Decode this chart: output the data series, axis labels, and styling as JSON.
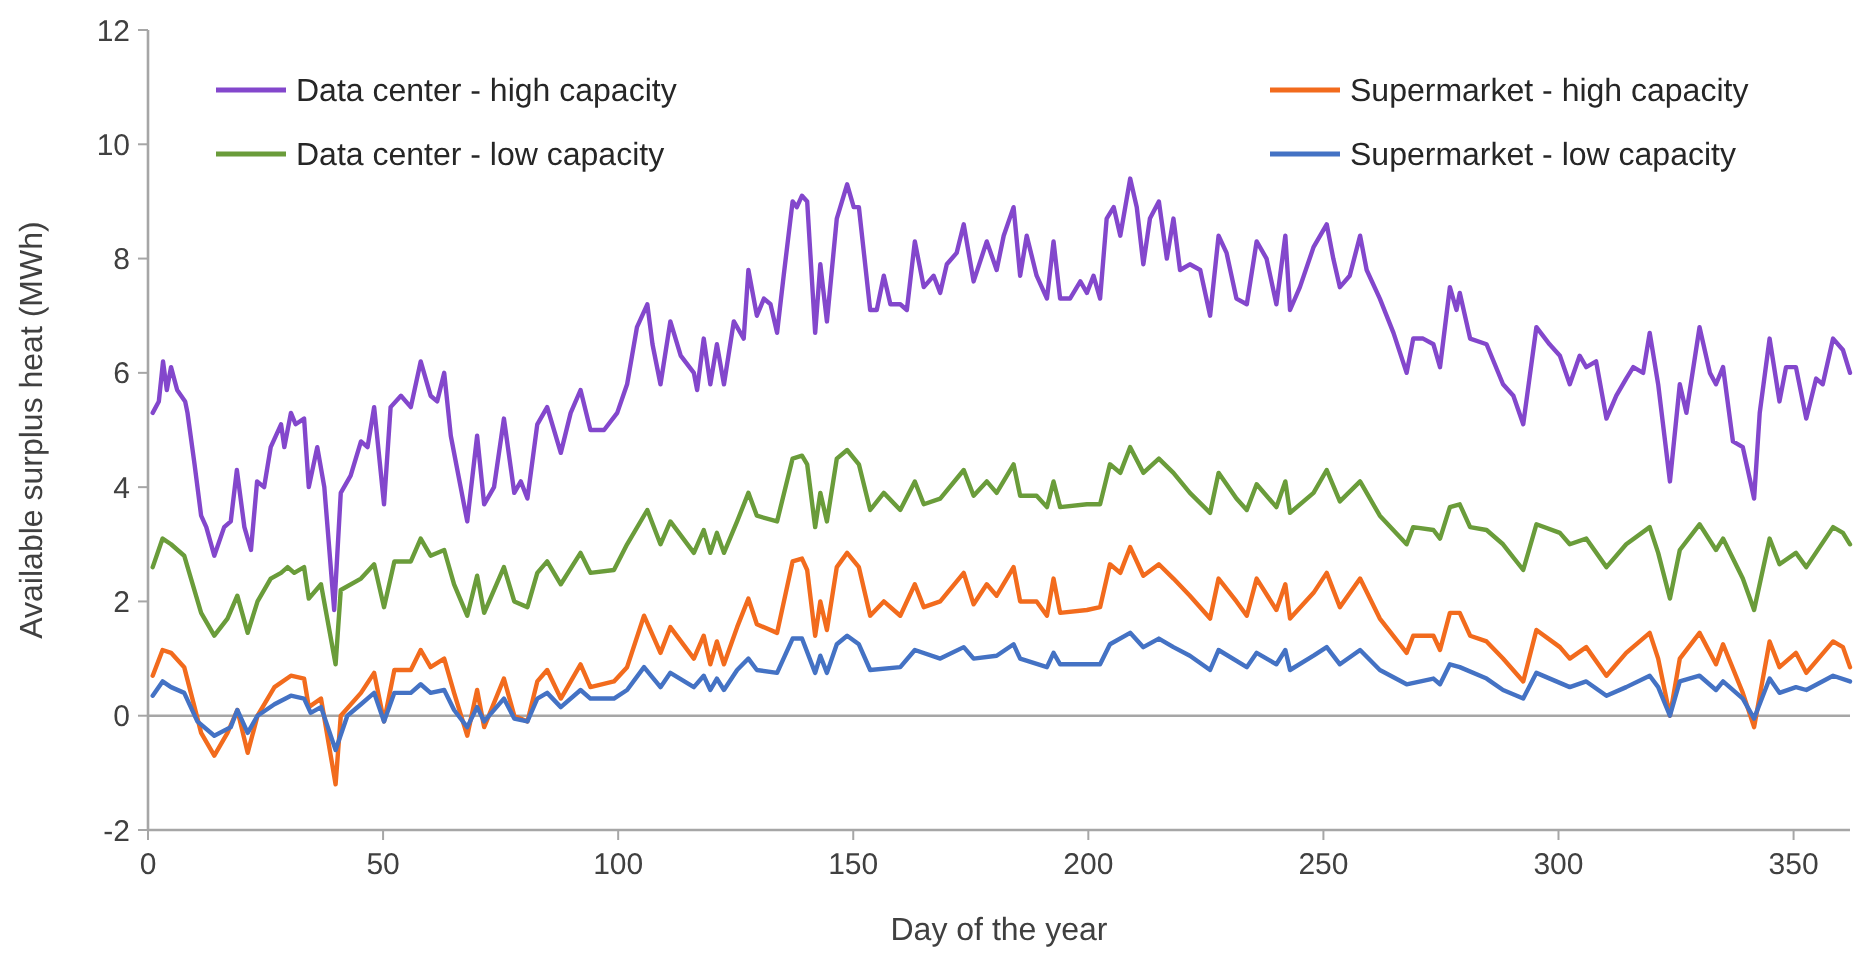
{
  "chart_data": {
    "type": "line",
    "xlabel": "Day of the year",
    "ylabel": "Available surplus heat (MWh)",
    "xlim": [
      0,
      362
    ],
    "xticks": [
      0,
      50,
      100,
      150,
      200,
      250,
      300,
      350
    ],
    "ylim": [
      -2,
      12
    ],
    "yticks": [
      -2,
      0,
      2,
      4,
      6,
      8,
      10,
      12
    ],
    "grid": false,
    "legend": "top",
    "marker": "none",
    "line_style": "solid",
    "ref_lines": [
      {
        "axis": "y",
        "value": 0,
        "color": "#a6a6a6"
      }
    ],
    "series": [
      {
        "name": "Data center - high capacity",
        "color": "#8347cc",
        "x": [
          1,
          2.3,
          3.2,
          4,
          4.9,
          6.2,
          7.9,
          8.4,
          9.9,
          11.3,
          12.4,
          14.1,
          16.2,
          17.6,
          18.9,
          20.5,
          21.9,
          23.2,
          24.7,
          26.1,
          28.3,
          29,
          30.4,
          31.4,
          33.2,
          34.2,
          36,
          37.5,
          39.6,
          41,
          43.1,
          45.3,
          46.7,
          48.1,
          50.2,
          51.6,
          53.8,
          55.9,
          58,
          60.1,
          61.5,
          63,
          64.4,
          66.5,
          67.9,
          70,
          71.5,
          73.6,
          75.7,
          77.9,
          79.3,
          80.7,
          82.8,
          84.9,
          87.8,
          89.9,
          92,
          94.1,
          97,
          99.8,
          101.9,
          104,
          106.2,
          107.3,
          109,
          111.1,
          113.3,
          116.1,
          116.8,
          118.2,
          119.6,
          121,
          122.5,
          124.6,
          126.7,
          127.7,
          129.5,
          131,
          132.4,
          133.8,
          135.2,
          137.1,
          138,
          139.1,
          140.2,
          141.9,
          143,
          144.4,
          146.5,
          148.7,
          150.1,
          151.2,
          153.6,
          155,
          156.5,
          157.9,
          160,
          161.4,
          163.1,
          165,
          167.1,
          168.5,
          169.9,
          172,
          173.5,
          175.6,
          178.4,
          180.5,
          182,
          184.1,
          185.5,
          186.9,
          189,
          191.2,
          192.6,
          194,
          196.1,
          198.3,
          199.7,
          201.1,
          202.5,
          203.9,
          205.4,
          206.8,
          208.9,
          210.3,
          211.7,
          213.1,
          215,
          216.7,
          218.1,
          219.5,
          221.6,
          223.8,
          225.9,
          227.7,
          229.4,
          231.5,
          233.7,
          235.8,
          237.9,
          240,
          241.9,
          242.9,
          245,
          247.9,
          250.7,
          252.1,
          253.5,
          255.6,
          257.8,
          259.2,
          262,
          264.9,
          267.7,
          269.1,
          271.2,
          273.4,
          274.8,
          276.9,
          278.3,
          279,
          281.2,
          284.7,
          288.2,
          290.4,
          292.5,
          295.3,
          298.1,
          300.3,
          302.4,
          304.5,
          305.9,
          308,
          310.2,
          312.3,
          314.4,
          315.9,
          318,
          319.4,
          321.2,
          323.7,
          325.8,
          327.2,
          330,
          332.2,
          333.5,
          335,
          337.1,
          339.2,
          341.6,
          342.8,
          344.9,
          347,
          348.4,
          350.5,
          352.7,
          354.8,
          356.2,
          358.4,
          360.5,
          362
        ],
        "values": [
          5.3,
          5.5,
          6.2,
          5.7,
          6.1,
          5.7,
          5.5,
          5.3,
          4.4,
          3.5,
          3.3,
          2.8,
          3.3,
          3.4,
          4.3,
          3.3,
          2.9,
          4.1,
          4.0,
          4.7,
          5.1,
          4.7,
          5.3,
          5.1,
          5.2,
          4.0,
          4.7,
          4.0,
          1.85,
          3.9,
          4.2,
          4.8,
          4.7,
          5.4,
          3.7,
          5.4,
          5.6,
          5.4,
          6.2,
          5.6,
          5.5,
          6.0,
          4.9,
          4.0,
          3.4,
          4.9,
          3.7,
          4.0,
          5.2,
          3.9,
          4.1,
          3.8,
          5.1,
          5.4,
          4.6,
          5.3,
          5.7,
          5.0,
          5.0,
          5.3,
          5.8,
          6.8,
          7.2,
          6.5,
          5.8,
          6.9,
          6.3,
          6.0,
          5.7,
          6.6,
          5.8,
          6.5,
          5.8,
          6.9,
          6.6,
          7.8,
          7.0,
          7.3,
          7.2,
          6.7,
          7.7,
          9.0,
          8.9,
          9.1,
          9.0,
          6.7,
          7.9,
          6.9,
          8.7,
          9.3,
          8.9,
          8.9,
          7.1,
          7.1,
          7.7,
          7.2,
          7.2,
          7.1,
          8.3,
          7.5,
          7.7,
          7.4,
          7.9,
          8.1,
          8.6,
          7.6,
          8.3,
          7.8,
          8.4,
          8.9,
          7.7,
          8.4,
          7.7,
          7.3,
          8.3,
          7.3,
          7.3,
          7.6,
          7.4,
          7.7,
          7.3,
          8.7,
          8.9,
          8.4,
          9.4,
          8.9,
          7.9,
          8.7,
          9.0,
          8.0,
          8.7,
          7.8,
          7.9,
          7.8,
          7.0,
          8.4,
          8.1,
          7.3,
          7.2,
          8.3,
          8.0,
          7.2,
          8.4,
          7.1,
          7.5,
          8.2,
          8.6,
          8.0,
          7.5,
          7.7,
          8.4,
          7.8,
          7.3,
          6.7,
          6.0,
          6.6,
          6.6,
          6.5,
          6.1,
          7.5,
          7.1,
          7.4,
          6.6,
          6.5,
          5.8,
          5.6,
          5.1,
          6.8,
          6.5,
          6.3,
          5.8,
          6.3,
          6.1,
          6.2,
          5.2,
          5.6,
          5.9,
          6.1,
          6.0,
          6.7,
          5.8,
          4.1,
          5.8,
          5.3,
          6.8,
          6.0,
          5.8,
          6.1,
          4.8,
          4.7,
          3.8,
          5.3,
          6.6,
          5.5,
          6.1,
          6.1,
          5.2,
          5.9,
          5.8,
          6.6,
          6.4,
          6.0
        ]
      },
      {
        "name": "Data center - low capacity",
        "color": "#6a9c3a",
        "x": [
          1,
          3.1,
          4.9,
          7.7,
          11.3,
          14.1,
          16.9,
          19,
          21.2,
          23.3,
          26.1,
          28.3,
          29.7,
          31.1,
          33.2,
          34.2,
          36.8,
          39.9,
          41,
          45.3,
          48.1,
          50.2,
          52.4,
          55.9,
          58,
          60.1,
          63,
          65.1,
          67.9,
          70,
          71.5,
          75.7,
          77.9,
          80.7,
          82.8,
          84.9,
          87.8,
          92,
          94.1,
          99.1,
          101.9,
          106.2,
          109,
          111.1,
          116.1,
          118.2,
          119.6,
          121,
          122.5,
          125.3,
          127.7,
          129.5,
          133.8,
          137.1,
          139.1,
          140.2,
          141.9,
          143,
          144.4,
          146.5,
          148.7,
          151.2,
          153.6,
          156.5,
          160,
          163.1,
          165,
          168.5,
          173.5,
          175.6,
          178.4,
          180.5,
          184.1,
          185.5,
          189,
          191.2,
          192.6,
          194,
          199.7,
          202.5,
          204.6,
          206.8,
          208.9,
          211.7,
          215,
          218.1,
          221.6,
          225.9,
          227.7,
          231.5,
          233.7,
          235.8,
          240,
          241.9,
          242.9,
          247.9,
          250.7,
          253.5,
          257.8,
          262,
          267.7,
          269.1,
          273.4,
          274.8,
          276.9,
          279,
          281.2,
          284.7,
          288.2,
          292.5,
          295.3,
          300.3,
          302.4,
          305.9,
          310.2,
          314.4,
          319.4,
          321.2,
          323.7,
          325.8,
          330,
          333.5,
          335,
          339.2,
          341.6,
          344.9,
          347,
          350.5,
          352.7,
          358.4,
          360.5,
          362
        ],
        "values": [
          2.6,
          3.1,
          3.0,
          2.8,
          1.8,
          1.4,
          1.7,
          2.1,
          1.45,
          2.0,
          2.4,
          2.5,
          2.6,
          2.5,
          2.6,
          2.05,
          2.3,
          0.9,
          2.2,
          2.4,
          2.65,
          1.9,
          2.7,
          2.7,
          3.1,
          2.8,
          2.9,
          2.3,
          1.75,
          2.45,
          1.8,
          2.6,
          2.0,
          1.9,
          2.5,
          2.7,
          2.3,
          2.85,
          2.5,
          2.55,
          3.0,
          3.6,
          3.0,
          3.4,
          2.85,
          3.25,
          2.85,
          3.2,
          2.85,
          3.4,
          3.9,
          3.5,
          3.4,
          4.5,
          4.55,
          4.4,
          3.3,
          3.9,
          3.4,
          4.5,
          4.65,
          4.4,
          3.6,
          3.9,
          3.6,
          4.1,
          3.7,
          3.8,
          4.3,
          3.85,
          4.1,
          3.9,
          4.4,
          3.85,
          3.85,
          3.65,
          4.1,
          3.65,
          3.7,
          3.7,
          4.4,
          4.25,
          4.7,
          4.25,
          4.5,
          4.25,
          3.9,
          3.55,
          4.25,
          3.8,
          3.6,
          4.05,
          3.65,
          4.1,
          3.55,
          3.9,
          4.3,
          3.75,
          4.1,
          3.5,
          3.0,
          3.3,
          3.25,
          3.1,
          3.65,
          3.7,
          3.3,
          3.25,
          3.0,
          2.55,
          3.35,
          3.2,
          3.0,
          3.1,
          2.6,
          3.0,
          3.3,
          2.85,
          2.05,
          2.9,
          3.35,
          2.9,
          3.1,
          2.4,
          1.85,
          3.1,
          2.65,
          2.85,
          2.6,
          3.3,
          3.2,
          3.0
        ]
      },
      {
        "name": "Supermarket - high capacity",
        "color": "#f26b1d",
        "x": [
          1,
          3.1,
          4.9,
          7.7,
          9.9,
          11.3,
          14.1,
          16.9,
          19,
          21.2,
          23.3,
          26.9,
          30.4,
          33.2,
          34.2,
          36.8,
          39.9,
          41,
          45.3,
          48.1,
          50.2,
          52.4,
          55.9,
          58,
          60.1,
          63,
          65.1,
          67.9,
          70,
          71.5,
          75.7,
          77.9,
          80.7,
          82.8,
          84.9,
          87.8,
          92,
          94.1,
          99.1,
          101.9,
          105.5,
          109,
          111.1,
          116.1,
          118.2,
          119.6,
          121,
          122.5,
          125.3,
          127.7,
          129.5,
          133.8,
          137.1,
          139.1,
          140.2,
          141.9,
          143,
          144.4,
          146.5,
          148.7,
          151.2,
          153.6,
          156.5,
          160,
          163.1,
          165,
          168.5,
          173.5,
          175.6,
          178.4,
          180.5,
          184.1,
          185.5,
          189,
          191.2,
          192.6,
          194,
          199.7,
          202.5,
          204.6,
          206.8,
          208.9,
          211.7,
          215,
          218.1,
          221.6,
          225.9,
          227.7,
          231.5,
          233.7,
          235.8,
          240,
          241.9,
          242.9,
          247.9,
          250.7,
          253.5,
          257.8,
          262,
          267.7,
          269.1,
          273.4,
          274.8,
          276.9,
          279,
          281.2,
          284.7,
          288.2,
          292.5,
          295.3,
          300.3,
          302.4,
          305.9,
          310.2,
          314.4,
          319.4,
          321.2,
          323.7,
          325.8,
          330,
          333.5,
          335,
          339.2,
          341.6,
          344.9,
          347,
          350.5,
          352.7,
          358.4,
          360.5,
          362
        ],
        "values": [
          0.7,
          1.15,
          1.1,
          0.85,
          0.15,
          -0.3,
          -0.7,
          -0.3,
          0.1,
          -0.65,
          0,
          0.5,
          0.7,
          0.65,
          0.15,
          0.3,
          -1.2,
          0,
          0.4,
          0.75,
          -0.1,
          0.8,
          0.8,
          1.15,
          0.85,
          1.0,
          0.4,
          -0.35,
          0.45,
          -0.2,
          0.65,
          0,
          -0.1,
          0.6,
          0.8,
          0.3,
          0.9,
          0.5,
          0.6,
          0.85,
          1.75,
          1.1,
          1.55,
          1.0,
          1.4,
          0.9,
          1.3,
          0.9,
          1.55,
          2.05,
          1.6,
          1.45,
          2.7,
          2.75,
          2.55,
          1.4,
          2.0,
          1.5,
          2.6,
          2.85,
          2.6,
          1.75,
          2.0,
          1.75,
          2.3,
          1.9,
          2.0,
          2.5,
          1.95,
          2.3,
          2.1,
          2.6,
          2.0,
          2.0,
          1.75,
          2.4,
          1.8,
          1.85,
          1.9,
          2.65,
          2.5,
          2.95,
          2.45,
          2.65,
          2.4,
          2.1,
          1.7,
          2.4,
          2.0,
          1.75,
          2.4,
          1.85,
          2.3,
          1.7,
          2.15,
          2.5,
          1.9,
          2.4,
          1.7,
          1.1,
          1.4,
          1.4,
          1.15,
          1.8,
          1.8,
          1.4,
          1.3,
          1.0,
          0.6,
          1.5,
          1.2,
          1.0,
          1.2,
          0.7,
          1.1,
          1.45,
          1.0,
          0,
          1.0,
          1.45,
          0.9,
          1.25,
          0.4,
          -0.2,
          1.3,
          0.85,
          1.1,
          0.75,
          1.3,
          1.2,
          0.85
        ]
      },
      {
        "name": "Supermarket - low capacity",
        "color": "#4472c4",
        "x": [
          1,
          3.1,
          4.9,
          7.7,
          10.5,
          14.1,
          17.6,
          19,
          21.2,
          23.3,
          26.9,
          30.4,
          33.2,
          34.6,
          36.8,
          39.9,
          42.4,
          45.3,
          48.1,
          50.2,
          52.4,
          55.9,
          58,
          60.1,
          63,
          65.1,
          67.9,
          70,
          71.5,
          75.7,
          77.9,
          80.7,
          82.8,
          84.9,
          87.8,
          92,
          94.1,
          99.1,
          101.9,
          105.5,
          109,
          111.1,
          116.1,
          118.2,
          119.6,
          121,
          122.5,
          125.3,
          127.7,
          129.5,
          133.8,
          137.1,
          139.1,
          141.9,
          143,
          144.4,
          146.5,
          148.7,
          151.2,
          153.6,
          160,
          163.1,
          168.5,
          173.5,
          175.6,
          180.5,
          184.1,
          185.5,
          191.2,
          192.6,
          194,
          199.7,
          202.5,
          204.6,
          208.9,
          211.7,
          215,
          218.1,
          221.6,
          225.9,
          227.7,
          233.7,
          235.8,
          240,
          241.9,
          242.9,
          247.9,
          250.7,
          253.5,
          257.8,
          262,
          267.7,
          273.4,
          274.8,
          276.9,
          279,
          284.7,
          288.2,
          292.5,
          295.3,
          302.4,
          305.9,
          310.2,
          314.4,
          319.4,
          321.2,
          323.7,
          325.8,
          330,
          333.5,
          335,
          339.2,
          341.6,
          344.9,
          347,
          350.5,
          352.7,
          358.4,
          362
        ],
        "values": [
          0.35,
          0.6,
          0.5,
          0.4,
          -0.1,
          -0.35,
          -0.2,
          0.1,
          -0.3,
          0,
          0.2,
          0.35,
          0.3,
          0.05,
          0.15,
          -0.6,
          0,
          0.2,
          0.4,
          -0.1,
          0.4,
          0.4,
          0.55,
          0.4,
          0.45,
          0.1,
          -0.2,
          0.15,
          -0.1,
          0.3,
          -0.05,
          -0.1,
          0.3,
          0.4,
          0.15,
          0.45,
          0.3,
          0.3,
          0.45,
          0.85,
          0.5,
          0.75,
          0.5,
          0.7,
          0.45,
          0.65,
          0.45,
          0.8,
          1.0,
          0.8,
          0.75,
          1.35,
          1.35,
          0.75,
          1.05,
          0.75,
          1.25,
          1.4,
          1.25,
          0.8,
          0.85,
          1.15,
          1.0,
          1.2,
          1.0,
          1.05,
          1.25,
          1.0,
          0.85,
          1.1,
          0.9,
          0.9,
          0.9,
          1.25,
          1.45,
          1.2,
          1.35,
          1.2,
          1.05,
          0.8,
          1.15,
          0.85,
          1.1,
          0.9,
          1.15,
          0.8,
          1.05,
          1.2,
          0.9,
          1.15,
          0.8,
          0.55,
          0.65,
          0.55,
          0.9,
          0.85,
          0.65,
          0.45,
          0.3,
          0.75,
          0.5,
          0.6,
          0.35,
          0.5,
          0.7,
          0.5,
          0,
          0.6,
          0.7,
          0.45,
          0.6,
          0.3,
          -0.05,
          0.65,
          0.4,
          0.5,
          0.45,
          0.7,
          0.6
        ]
      }
    ]
  }
}
